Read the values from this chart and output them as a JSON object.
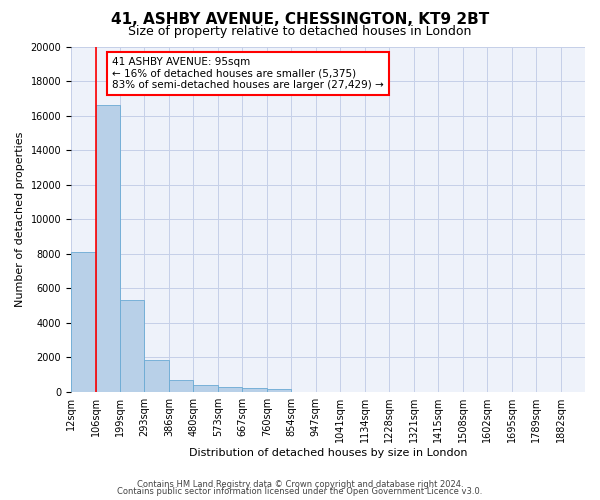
{
  "title_line1": "41, ASHBY AVENUE, CHESSINGTON, KT9 2BT",
  "title_line2": "Size of property relative to detached houses in London",
  "xlabel": "Distribution of detached houses by size in London",
  "ylabel": "Number of detached properties",
  "annotation_title": "41 ASHBY AVENUE: 95sqm",
  "annotation_line2": "← 16% of detached houses are smaller (5,375)",
  "annotation_line3": "83% of semi-detached houses are larger (27,429) →",
  "footer_line1": "Contains HM Land Registry data © Crown copyright and database right 2024.",
  "footer_line2": "Contains public sector information licensed under the Open Government Licence v3.0.",
  "categories": [
    "12sqm",
    "106sqm",
    "199sqm",
    "293sqm",
    "386sqm",
    "480sqm",
    "573sqm",
    "667sqm",
    "760sqm",
    "854sqm",
    "947sqm",
    "1041sqm",
    "1134sqm",
    "1228sqm",
    "1321sqm",
    "1415sqm",
    "1508sqm",
    "1602sqm",
    "1695sqm",
    "1789sqm",
    "1882sqm"
  ],
  "values": [
    8100,
    16600,
    5300,
    1850,
    700,
    360,
    270,
    220,
    170,
    0,
    0,
    0,
    0,
    0,
    0,
    0,
    0,
    0,
    0,
    0,
    0
  ],
  "bar_color": "#b8d0e8",
  "bar_edge_color": "#6aaad4",
  "marker_color": "red",
  "ylim": [
    0,
    20000
  ],
  "yticks": [
    0,
    2000,
    4000,
    6000,
    8000,
    10000,
    12000,
    14000,
    16000,
    18000,
    20000
  ],
  "bg_color": "#eef2fa",
  "grid_color": "#c5cfe8",
  "title_fontsize": 11,
  "subtitle_fontsize": 9,
  "axis_fontsize": 8,
  "tick_fontsize": 7,
  "footer_fontsize": 6
}
